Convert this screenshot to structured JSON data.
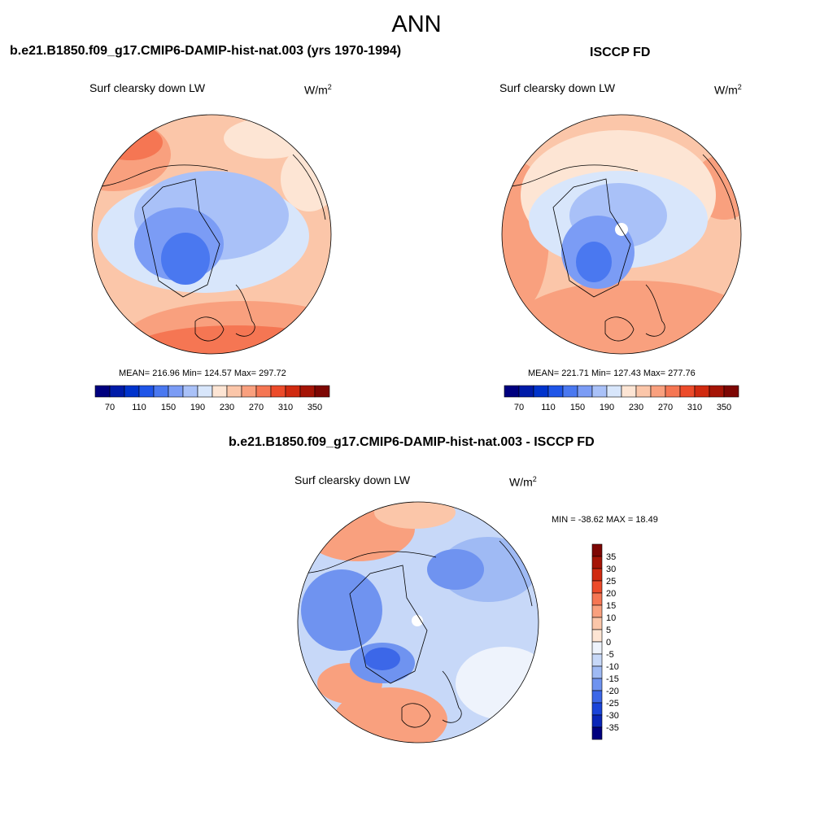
{
  "title": "ANN",
  "panels": [
    {
      "id": "model",
      "title": "b.e21.B1850.f09_g17.CMIP6-DAMIP-hist-nat.003 (yrs 1970-1994)",
      "subtitle": "Surf clearsky down LW",
      "units_base": "W/m",
      "units_exp": "2",
      "stats": "MEAN= 216.96  Min= 124.57  Max= 297.72"
    },
    {
      "id": "obs",
      "title": "ISCCP FD",
      "subtitle": "Surf clearsky down LW",
      "units_base": "W/m",
      "units_exp": "2",
      "stats": "MEAN= 221.71  Min= 127.43  Max= 277.76"
    },
    {
      "id": "diff",
      "title": "b.e21.B1850.f09_g17.CMIP6-DAMIP-hist-nat.003 - ISCCP FD",
      "subtitle": "Surf clearsky down LW",
      "units_base": "W/m",
      "units_exp": "2",
      "stats": "MIN = -38.62 MAX =  18.49"
    }
  ],
  "colorbar_abs": {
    "colors": [
      "#00007f",
      "#001ba8",
      "#0033cc",
      "#1f55e8",
      "#4a78f0",
      "#7b9cf5",
      "#a9c1f8",
      "#d8e6fb",
      "#fde5d4",
      "#fbc6a9",
      "#f9a07e",
      "#f57653",
      "#ec4b2a",
      "#d02a10",
      "#a51406",
      "#7d0603"
    ],
    "tick_labels": [
      "70",
      "110",
      "150",
      "190",
      "230",
      "270",
      "310",
      "350"
    ]
  },
  "colorbar_diff": {
    "colors": [
      "#7d0603",
      "#a51406",
      "#d02a10",
      "#ec4b2a",
      "#f57653",
      "#f9a07e",
      "#fbc6a9",
      "#fde5d4",
      "#eef3fc",
      "#c7d8f8",
      "#9fbaf4",
      "#6f93f0",
      "#3c67e8",
      "#1a44d9",
      "#0a26b8",
      "#00007f"
    ],
    "tick_labels": [
      "35",
      "30",
      "25",
      "20",
      "15",
      "10",
      "5",
      "0",
      "-5",
      "-10",
      "-15",
      "-20",
      "-25",
      "-30",
      "-35"
    ]
  },
  "maps": [
    {
      "id": "model",
      "background": "#fbc6a9"
    },
    {
      "id": "obs",
      "background": "#fbc6a9"
    },
    {
      "id": "diff",
      "background": "#c7d8f8"
    }
  ]
}
